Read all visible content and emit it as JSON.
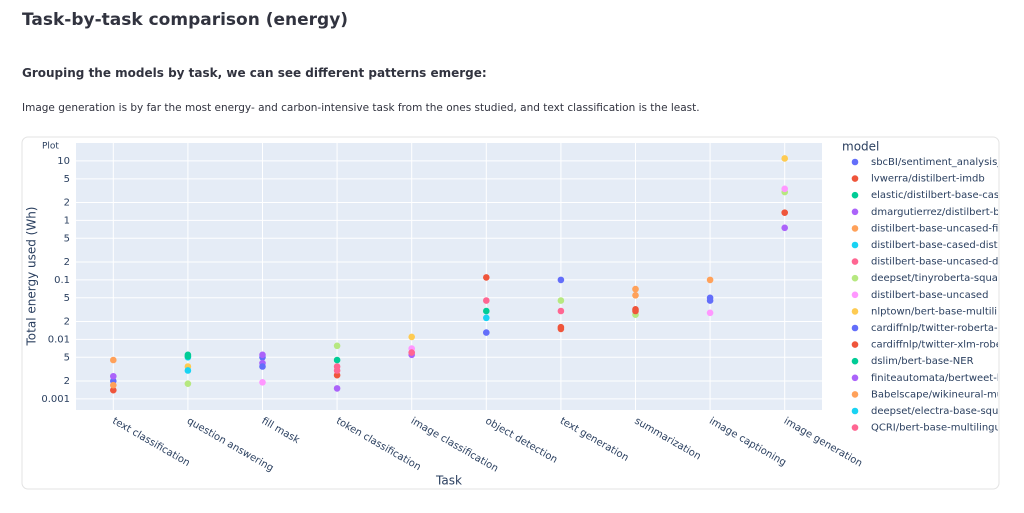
{
  "header": {
    "title": "Task-by-task comparison (energy)",
    "subtitle": "Grouping the models by task, we can see different patterns emerge:",
    "text": "Image generation is by far the most energy- and carbon-intensive task from the ones studied, and text classification is the least.",
    "plot_label": "Plot"
  },
  "chart_data": {
    "type": "scatter",
    "x_label": "Task",
    "y_label": "Total energy used (Wh)",
    "legend_title": "model",
    "yscale": "log",
    "grid": true,
    "legend": "right",
    "categories": [
      "text classification",
      "question answering",
      "fill mask",
      "token classification",
      "image classification",
      "object detection",
      "text generation",
      "summarization",
      "image captioning",
      "image generation"
    ],
    "ylim": [
      0.00065,
      20
    ],
    "yticks": [
      0.001,
      {
        "value": 0.002,
        "label": "2"
      },
      {
        "value": 0.005,
        "label": "5"
      },
      0.01,
      {
        "value": 0.02,
        "label": "2"
      },
      {
        "value": 0.05,
        "label": "5"
      },
      0.1,
      {
        "value": 0.2,
        "label": "2"
      },
      {
        "value": 0.5,
        "label": "5"
      },
      1,
      {
        "value": 2,
        "label": "2"
      },
      {
        "value": 5,
        "label": "5"
      },
      10
    ],
    "series": [
      {
        "name": "sbcBI/sentiment_analysis_",
        "color": "#636efa",
        "x": [
          "text classification",
          "fill mask",
          "text generation",
          "image captioning"
        ],
        "values": [
          0.002,
          0.005,
          0.1,
          0.05
        ]
      },
      {
        "name": "lvwerra/distilbert-imdb",
        "color": "#EF553B",
        "x": [
          "text classification",
          "object detection",
          "text generation",
          "summarization"
        ],
        "values": [
          0.0014,
          0.11,
          0.015,
          0.032
        ]
      },
      {
        "name": "elastic/distilbert-base-case",
        "color": "#00cc96",
        "x": [
          "question answering",
          "object detection"
        ],
        "values": [
          0.0055,
          0.03
        ]
      },
      {
        "name": "dmargutierrez/distilbert-ba",
        "color": "#ab63fa",
        "x": [
          "text classification",
          "fill mask",
          "token classification",
          "image classification",
          "image generation"
        ],
        "values": [
          0.0024,
          0.004,
          0.0015,
          0.0055,
          0.75
        ]
      },
      {
        "name": "distilbert-base-uncased-fine",
        "color": "#FFA15A",
        "x": [
          "text classification",
          "summarization",
          "image captioning"
        ],
        "values": [
          0.0045,
          0.07,
          0.1
        ]
      },
      {
        "name": "distilbert-base-cased-distill",
        "color": "#19d3f3",
        "x": [
          "question answering",
          "object detection"
        ],
        "values": [
          0.005,
          0.023
        ]
      },
      {
        "name": "distilbert-base-uncased-dis",
        "color": "#FF6692",
        "x": [
          "token classification",
          "object detection",
          "text generation"
        ],
        "values": [
          0.0035,
          0.045,
          0.03
        ]
      },
      {
        "name": "deepset/tinyroberta-squad",
        "color": "#B6E880",
        "x": [
          "question answering",
          "token classification",
          "text generation",
          "summarization",
          "image generation"
        ],
        "values": [
          0.0018,
          0.0078,
          0.045,
          0.026,
          3
        ]
      },
      {
        "name": "distilbert-base-uncased",
        "color": "#FF97FF",
        "x": [
          "fill mask",
          "image classification",
          "image captioning",
          "image generation"
        ],
        "values": [
          0.0019,
          0.007,
          0.028,
          3.4
        ]
      },
      {
        "name": "nlptown/bert-base-multilin",
        "color": "#FECB52",
        "x": [
          "question answering",
          "image classification",
          "image generation"
        ],
        "values": [
          0.0035,
          0.011,
          11
        ]
      },
      {
        "name": "cardiffnlp/twitter-roberta-b",
        "color": "#636efa",
        "x": [
          "fill mask",
          "object detection",
          "image captioning"
        ],
        "values": [
          0.0035,
          0.013,
          0.045
        ]
      },
      {
        "name": "cardiffnlp/twitter-xlm-rober",
        "color": "#EF553B",
        "x": [
          "token classification",
          "text generation",
          "summarization",
          "image generation"
        ],
        "values": [
          0.0025,
          0.016,
          0.03,
          1.35
        ]
      },
      {
        "name": "dslim/bert-base-NER",
        "color": "#00cc96",
        "x": [
          "question answering",
          "token classification"
        ],
        "values": [
          0.0052,
          0.0045
        ]
      },
      {
        "name": "finiteautomata/bertweet-ba",
        "color": "#ab63fa",
        "x": [
          "fill mask"
        ],
        "values": [
          0.0055
        ]
      },
      {
        "name": "Babelscape/wikineural-mul",
        "color": "#FFA15A",
        "x": [
          "text classification",
          "summarization"
        ],
        "values": [
          0.0017,
          0.055
        ]
      },
      {
        "name": "deepset/electra-base-squac",
        "color": "#19d3f3",
        "x": [
          "question answering"
        ],
        "values": [
          0.003
        ]
      },
      {
        "name": "QCRI/bert-base-multilingua",
        "color": "#FF6692",
        "x": [
          "token classification",
          "image classification"
        ],
        "values": [
          0.003,
          0.006
        ]
      }
    ]
  }
}
